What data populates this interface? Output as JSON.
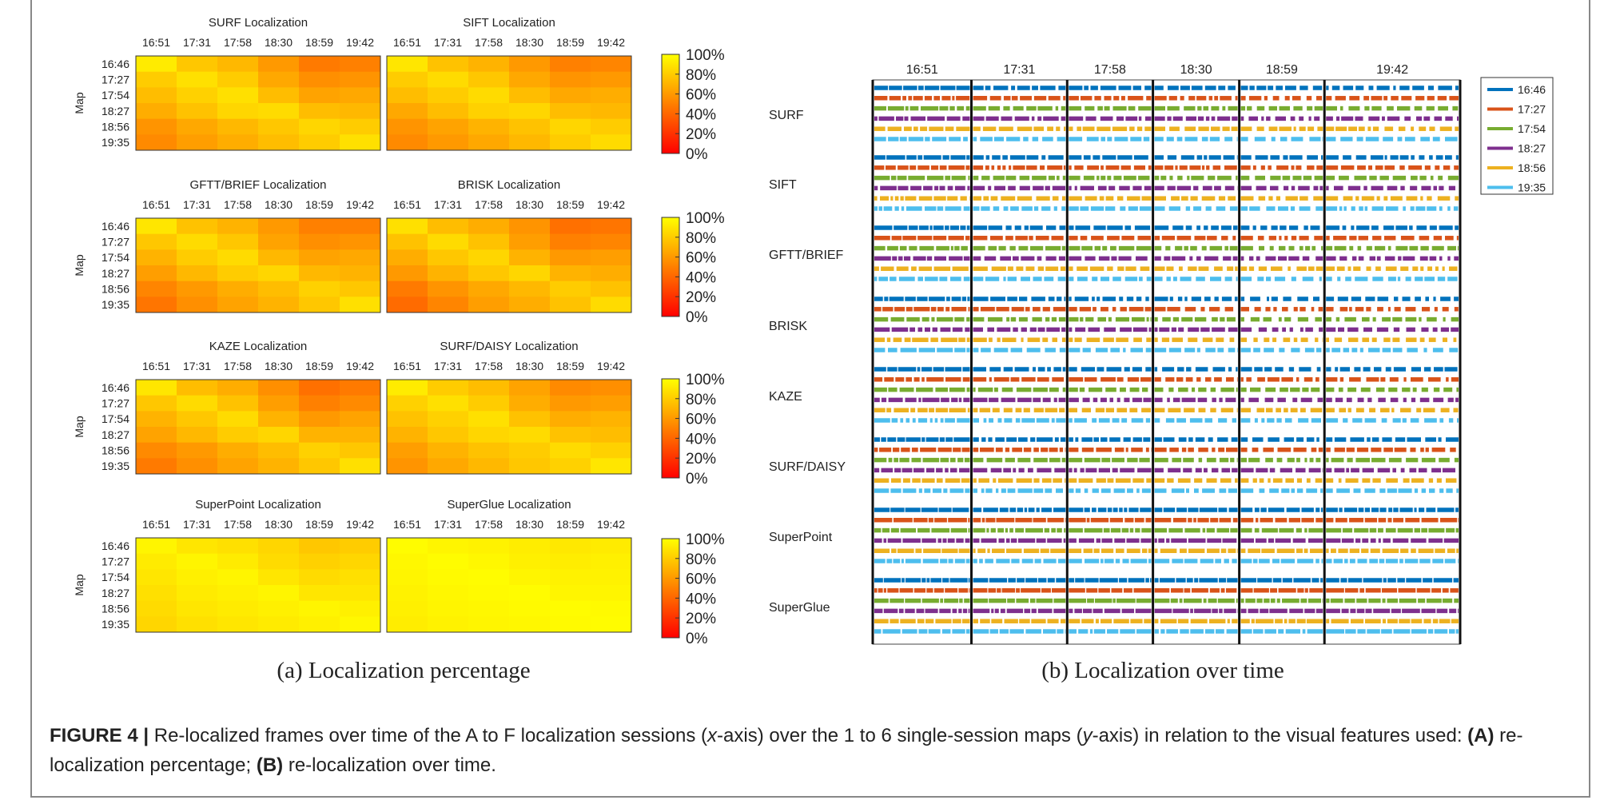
{
  "figure": {
    "label": "FIGURE 4 |",
    "caption_parts": [
      "Re-localized frames over time of the A to F localization sessions (",
      "x",
      "-axis) over the 1 to 6 single-session maps (",
      "y",
      "-axis) in relation to the visual features used: ",
      "(A)",
      " re-localization percentage; ",
      "(B)",
      " re-localization over time."
    ],
    "subcaption_a": "(a) Localization percentage",
    "subcaption_b": "(b) Localization over time"
  },
  "colors": {
    "16:46": "#0072BD",
    "17:27": "#D95319",
    "17:54": "#77AC30",
    "18:27": "#7E2F8E",
    "18:56": "#EDB120",
    "19:35": "#4DBEEE"
  },
  "chart_data": [
    {
      "type": "heatmap",
      "panel": "a",
      "sessions": [
        "16:51",
        "17:31",
        "17:58",
        "18:30",
        "18:59",
        "19:42"
      ],
      "maps": [
        "16:46",
        "17:27",
        "17:54",
        "18:27",
        "18:56",
        "19:35"
      ],
      "ylabel": "Map",
      "colorbar_ticks": [
        "100%",
        "80%",
        "60%",
        "40%",
        "20%",
        "0%"
      ],
      "colorscale": "autumn",
      "value_range": [
        0,
        100
      ],
      "heatmaps": [
        {
          "title": "SURF Localization",
          "values": [
            [
              92,
              78,
              72,
              60,
              48,
              50
            ],
            [
              80,
              88,
              80,
              66,
              56,
              58
            ],
            [
              74,
              82,
              88,
              74,
              64,
              66
            ],
            [
              68,
              76,
              84,
              86,
              74,
              72
            ],
            [
              58,
              66,
              72,
              78,
              84,
              80
            ],
            [
              54,
              62,
              68,
              74,
              80,
              88
            ]
          ]
        },
        {
          "title": "SIFT Localization",
          "values": [
            [
              90,
              76,
              70,
              60,
              50,
              52
            ],
            [
              80,
              86,
              78,
              66,
              58,
              60
            ],
            [
              74,
              80,
              86,
              74,
              66,
              68
            ],
            [
              66,
              74,
              82,
              84,
              74,
              72
            ],
            [
              58,
              64,
              70,
              76,
              84,
              80
            ],
            [
              54,
              60,
              66,
              72,
              80,
              86
            ]
          ]
        },
        {
          "title": "GFTT/BRIEF Localization",
          "values": [
            [
              90,
              76,
              70,
              60,
              50,
              50
            ],
            [
              78,
              86,
              78,
              64,
              56,
              58
            ],
            [
              70,
              80,
              86,
              72,
              64,
              66
            ],
            [
              62,
              72,
              80,
              84,
              72,
              70
            ],
            [
              52,
              60,
              68,
              74,
              82,
              78
            ],
            [
              46,
              56,
              64,
              70,
              78,
              88
            ]
          ]
        },
        {
          "title": "BRISK Localization",
          "values": [
            [
              88,
              74,
              68,
              58,
              44,
              46
            ],
            [
              76,
              86,
              76,
              62,
              50,
              52
            ],
            [
              68,
              78,
              84,
              70,
              60,
              62
            ],
            [
              60,
              70,
              78,
              84,
              70,
              68
            ],
            [
              48,
              58,
              66,
              72,
              80,
              76
            ],
            [
              42,
              52,
              62,
              68,
              76,
              86
            ]
          ]
        },
        {
          "title": "KAZE Localization",
          "values": [
            [
              90,
              74,
              68,
              56,
              44,
              48
            ],
            [
              78,
              86,
              76,
              62,
              50,
              54
            ],
            [
              70,
              78,
              86,
              70,
              60,
              64
            ],
            [
              64,
              72,
              80,
              84,
              70,
              70
            ],
            [
              54,
              60,
              68,
              74,
              82,
              78
            ],
            [
              48,
              56,
              64,
              70,
              78,
              88
            ]
          ]
        },
        {
          "title": "SURF/DAISY Localization",
          "values": [
            [
              92,
              80,
              74,
              64,
              54,
              56
            ],
            [
              82,
              88,
              80,
              68,
              60,
              62
            ],
            [
              76,
              82,
              88,
              76,
              68,
              70
            ],
            [
              70,
              78,
              84,
              86,
              76,
              74
            ],
            [
              62,
              70,
              76,
              80,
              86,
              82
            ],
            [
              58,
              66,
              72,
              78,
              82,
              90
            ]
          ]
        },
        {
          "title": "SuperPoint Localization",
          "values": [
            [
              96,
              90,
              88,
              84,
              78,
              80
            ],
            [
              92,
              96,
              92,
              86,
              82,
              84
            ],
            [
              90,
              94,
              96,
              90,
              86,
              88
            ],
            [
              88,
              92,
              94,
              96,
              90,
              90
            ],
            [
              86,
              90,
              92,
              94,
              96,
              94
            ],
            [
              84,
              88,
              90,
              92,
              94,
              97
            ]
          ]
        },
        {
          "title": "SuperGlue Localization",
          "values": [
            [
              99,
              96,
              95,
              93,
              91,
              92
            ],
            [
              97,
              99,
              97,
              94,
              93,
              94
            ],
            [
              96,
              98,
              99,
              96,
              95,
              95
            ],
            [
              95,
              97,
              98,
              99,
              96,
              96
            ],
            [
              94,
              96,
              97,
              98,
              99,
              98
            ],
            [
              93,
              95,
              96,
              97,
              98,
              99
            ]
          ]
        }
      ]
    },
    {
      "type": "timeline",
      "panel": "b",
      "sessions": [
        "16:51",
        "17:31",
        "17:58",
        "18:30",
        "18:59",
        "19:42"
      ],
      "session_duration_fraction": [
        0.168,
        0.163,
        0.146,
        0.147,
        0.145,
        0.231
      ],
      "features": [
        "SURF",
        "SIFT",
        "GFTT/BRIEF",
        "BRISK",
        "KAZE",
        "SURF/DAISY",
        "SuperPoint",
        "SuperGlue"
      ],
      "legend": [
        "16:46",
        "17:27",
        "17:54",
        "18:27",
        "18:56",
        "19:35"
      ],
      "legend_position": "top-right",
      "localization_density": [
        [
          0.92,
          0.8,
          0.78,
          0.7,
          0.62,
          0.66
        ],
        [
          0.9,
          0.78,
          0.76,
          0.7,
          0.62,
          0.66
        ],
        [
          0.9,
          0.78,
          0.76,
          0.68,
          0.6,
          0.64
        ],
        [
          0.88,
          0.74,
          0.72,
          0.64,
          0.54,
          0.58
        ],
        [
          0.9,
          0.76,
          0.74,
          0.66,
          0.58,
          0.62
        ],
        [
          0.92,
          0.82,
          0.8,
          0.72,
          0.66,
          0.7
        ],
        [
          0.97,
          0.92,
          0.92,
          0.9,
          0.88,
          0.9
        ],
        [
          0.99,
          0.97,
          0.97,
          0.96,
          0.95,
          0.96
        ]
      ]
    }
  ]
}
